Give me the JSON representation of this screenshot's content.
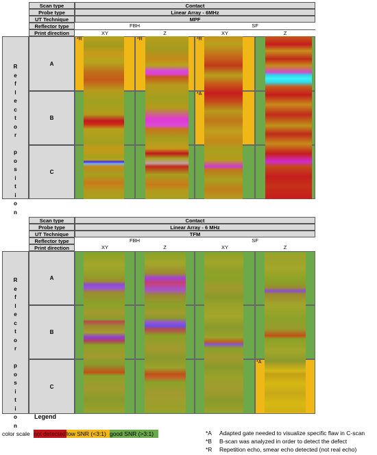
{
  "table1": {
    "header": [
      {
        "label": "Scan type",
        "value": "Contact"
      },
      {
        "label": "Probe type",
        "value": "Linear Array - 6MHz"
      },
      {
        "label": "UT Technique",
        "value": "MPF"
      }
    ],
    "reflector_type_label": "Reflector type",
    "print_direction_label": "Print direction",
    "reflector_types": [
      "FBH",
      "SF"
    ],
    "directions": [
      "XY",
      "Z",
      "XY",
      "Z"
    ],
    "side_label": "Reflector position",
    "rows": [
      "A",
      "B",
      "C"
    ],
    "annotations": [
      "*R",
      "*R",
      "*R",
      "*A"
    ]
  },
  "table2": {
    "header": [
      {
        "label": "Scan type",
        "value": "Contact"
      },
      {
        "label": "Probe type",
        "value": "Linear Array - 6 MHz"
      },
      {
        "label": "UT Technique",
        "value": "TFM"
      }
    ],
    "reflector_type_label": "Reflector type",
    "print_direction_label": "Print direction",
    "reflector_types": [
      "FBH",
      "SF"
    ],
    "directions": [
      "XY",
      "Z",
      "XY",
      "Z"
    ],
    "side_label": "Reflector position",
    "rows": [
      "A",
      "B",
      "C"
    ],
    "annotations": [
      "*A"
    ]
  },
  "legend": {
    "title": "Legend",
    "color_scale_label": "color scale",
    "items": [
      {
        "label": "not detected",
        "color": "#c0121b"
      },
      {
        "label": "low SNR (<3:1)",
        "color": "#f0b816"
      },
      {
        "label": "good SNR (>3:1)",
        "color": "#6ba94a"
      }
    ],
    "notes": [
      {
        "key": "*A",
        "text": "Adapted gate needed to visualize specific flaw in C-scan"
      },
      {
        "key": "*B",
        "text": "B-scan was analyzed in order to detect the defect"
      },
      {
        "key": "*R",
        "text": "Repetition echo, smear echo detected (not real echo)"
      }
    ]
  }
}
